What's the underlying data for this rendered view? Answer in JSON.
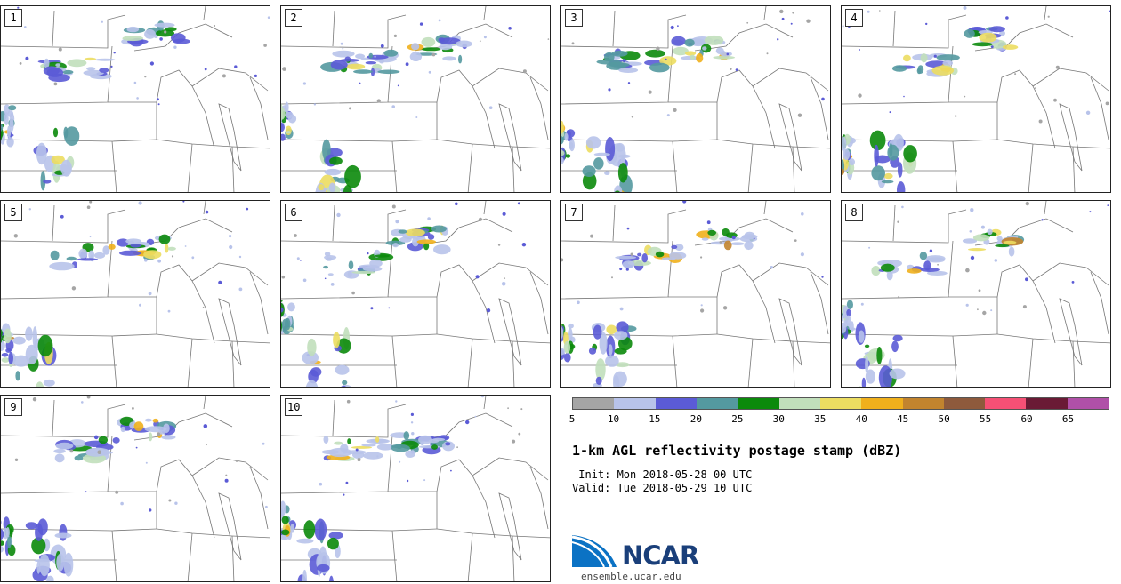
{
  "panels": [
    {
      "label": "1",
      "seed": 11
    },
    {
      "label": "2",
      "seed": 23
    },
    {
      "label": "3",
      "seed": 37
    },
    {
      "label": "4",
      "seed": 41
    },
    {
      "label": "5",
      "seed": 53
    },
    {
      "label": "6",
      "seed": 67
    },
    {
      "label": "7",
      "seed": 79
    },
    {
      "label": "8",
      "seed": 83
    },
    {
      "label": "9",
      "seed": 97
    },
    {
      "label": "10",
      "seed": 101
    }
  ],
  "colorbar": {
    "colors": [
      "#a5a5a5",
      "#b8c3ea",
      "#5b5bd6",
      "#5499a0",
      "#0b8a0b",
      "#c1dfbb",
      "#ecdd61",
      "#f0b01c",
      "#c2842e",
      "#8e5a3c",
      "#f55075",
      "#6a1a35",
      "#b050a8"
    ],
    "ticks": [
      "5",
      "10",
      "15",
      "20",
      "25",
      "30",
      "35",
      "40",
      "45",
      "50",
      "55",
      "60",
      "65"
    ]
  },
  "title": "1-km AGL reflectivity postage stamp (dBZ)",
  "init": " Init: Mon 2018-05-28 00 UTC",
  "valid": "Valid: Tue 2018-05-29 10 UTC",
  "logo": {
    "text": "NCAR",
    "url": "ensemble.ucar.edu"
  }
}
